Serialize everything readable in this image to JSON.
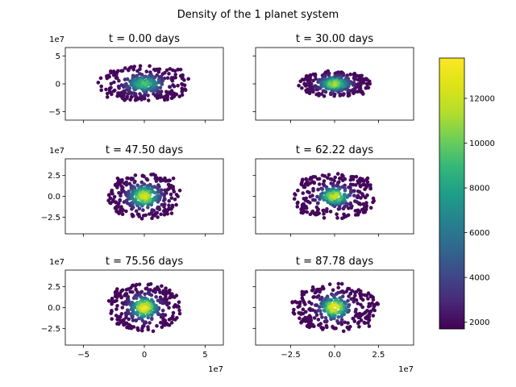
{
  "figure": {
    "suptitle": "Density of the 1 planet system"
  },
  "colorbar": {
    "vmin": 1700,
    "vmax": 13800,
    "ticks": [
      2000,
      4000,
      6000,
      8000,
      10000,
      12000
    ],
    "tick_labels": [
      "2000",
      "4000",
      "6000",
      "8000",
      "10000",
      "12000"
    ],
    "colormap": "viridis"
  },
  "chart_data": [
    {
      "type": "scatter",
      "title": "t = 0.00 days",
      "xlim": [
        -65000000,
        65000000
      ],
      "ylim": [
        -65000000,
        65000000
      ],
      "xticks": [
        -50000000,
        0,
        50000000
      ],
      "xtick_labels": [],
      "yticks": [
        -50000000,
        0,
        50000000
      ],
      "ytick_labels": [
        "−5",
        "0",
        "5"
      ],
      "yoffset": "1e7",
      "xoffset": "",
      "spread": [
        0.55,
        0.45
      ],
      "core": [
        0.12,
        0.12
      ],
      "n_points": 330,
      "max_density": 9800
    },
    {
      "type": "scatter",
      "title": "t = 30.00 days",
      "xlim": [
        -45000000,
        45000000
      ],
      "ylim": [
        -65000000,
        65000000
      ],
      "xticks": [
        -25000000,
        0,
        25000000
      ],
      "xtick_labels": [],
      "yticks": [
        -50000000,
        0,
        50000000
      ],
      "ytick_labels": [],
      "yoffset": "",
      "xoffset": "",
      "spread": [
        0.42,
        0.32
      ],
      "core": [
        0.1,
        0.1
      ],
      "n_points": 330,
      "max_density": 11500
    },
    {
      "type": "scatter",
      "title": "t = 47.50 days",
      "xlim": [
        -65000000,
        65000000
      ],
      "ylim": [
        -45000000,
        45000000
      ],
      "xticks": [
        -50000000,
        0,
        50000000
      ],
      "xtick_labels": [],
      "yticks": [
        -25000000,
        0,
        25000000
      ],
      "ytick_labels": [
        "−2.5",
        "0.0",
        "2.5"
      ],
      "yoffset": "1e7",
      "xoffset": "",
      "spread": [
        0.42,
        0.55
      ],
      "core": [
        0.1,
        0.15
      ],
      "n_points": 340,
      "max_density": 12800
    },
    {
      "type": "scatter",
      "title": "t = 62.22 days",
      "xlim": [
        -45000000,
        45000000
      ],
      "ylim": [
        -45000000,
        45000000
      ],
      "xticks": [
        -25000000,
        0,
        25000000
      ],
      "xtick_labels": [],
      "yticks": [
        -25000000,
        0,
        25000000
      ],
      "ytick_labels": [],
      "yoffset": "",
      "xoffset": "",
      "spread": [
        0.48,
        0.55
      ],
      "core": [
        0.1,
        0.12
      ],
      "n_points": 340,
      "max_density": 12500
    },
    {
      "type": "scatter",
      "title": "t = 75.56 days",
      "xlim": [
        -65000000,
        65000000
      ],
      "ylim": [
        -45000000,
        45000000
      ],
      "xticks": [
        -50000000,
        0,
        50000000
      ],
      "xtick_labels": [
        "−5",
        "0",
        "5"
      ],
      "yticks": [
        -25000000,
        0,
        25000000
      ],
      "ytick_labels": [
        "−2.5",
        "0.0",
        "2.5"
      ],
      "yoffset": "1e7",
      "xoffset": "1e7",
      "spread": [
        0.42,
        0.58
      ],
      "core": [
        0.09,
        0.15
      ],
      "n_points": 340,
      "max_density": 13800
    },
    {
      "type": "scatter",
      "title": "t = 87.78 days",
      "xlim": [
        -45000000,
        45000000
      ],
      "ylim": [
        -45000000,
        45000000
      ],
      "xticks": [
        -25000000,
        0,
        25000000
      ],
      "xtick_labels": [
        "−2.5",
        "0.0",
        "2.5"
      ],
      "yticks": [
        -25000000,
        0,
        25000000
      ],
      "ytick_labels": [],
      "yoffset": "",
      "xoffset": "1e7",
      "spread": [
        0.5,
        0.58
      ],
      "core": [
        0.09,
        0.15
      ],
      "n_points": 340,
      "max_density": 13800
    }
  ]
}
